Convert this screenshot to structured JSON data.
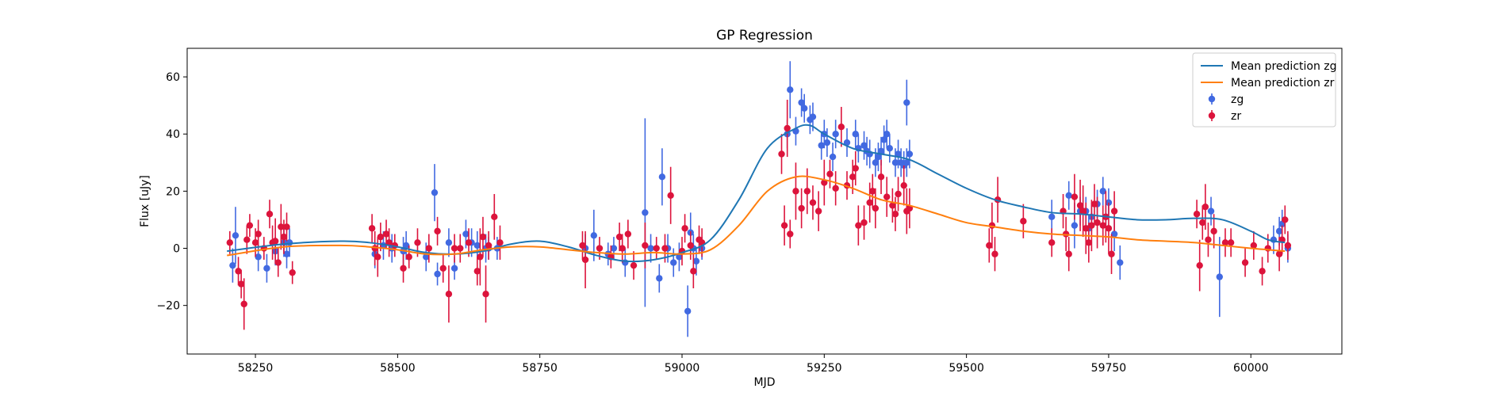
{
  "chart_data": {
    "type": "scatter",
    "title": "GP Regression",
    "xlabel": "MJD",
    "ylabel": "Flux [uJy]",
    "xlim": [
      58130,
      60160
    ],
    "ylim": [
      -37,
      70
    ],
    "xticks": [
      58250,
      58500,
      58750,
      59000,
      59250,
      59500,
      59750,
      60000
    ],
    "yticks": [
      -20,
      0,
      20,
      40,
      60
    ],
    "grid": false,
    "legend_position": "top-right",
    "colors": {
      "zg_line": "#1f77b4",
      "zr_line": "#ff7f0e",
      "zg_points": "#4169e1",
      "zr_points": "#dc143c"
    },
    "legend": [
      "Mean prediction zg",
      "Mean prediction zr",
      "zg",
      "zr"
    ],
    "series": [
      {
        "name": "Mean prediction zg",
        "kind": "line",
        "x": [
          58200,
          58300,
          58400,
          58450,
          58500,
          58550,
          58600,
          58650,
          58700,
          58750,
          58800,
          58850,
          58900,
          58950,
          59000,
          59050,
          59100,
          59150,
          59200,
          59225,
          59250,
          59300,
          59350,
          59400,
          59450,
          59500,
          59550,
          59600,
          59650,
          59700,
          59750,
          59800,
          59850,
          59900,
          59950,
          60000,
          60030,
          60060
        ],
        "y": [
          -1,
          1.5,
          2.5,
          2,
          0.5,
          -1.5,
          -2,
          -1,
          1.5,
          2.5,
          0.5,
          -2.5,
          -4.5,
          -4,
          -1.5,
          3,
          17,
          35,
          42,
          43,
          40,
          35,
          33,
          31,
          26,
          21,
          17,
          14.5,
          12.5,
          12,
          11,
          10,
          10,
          10.5,
          10,
          6,
          3,
          2
        ]
      },
      {
        "name": "Mean prediction zr",
        "kind": "line",
        "x": [
          58200,
          58300,
          58400,
          58450,
          58500,
          58550,
          58600,
          58650,
          58700,
          58750,
          58800,
          58850,
          58900,
          58950,
          59000,
          59050,
          59100,
          59150,
          59200,
          59250,
          59300,
          59350,
          59400,
          59450,
          59500,
          59550,
          59600,
          59650,
          59700,
          59750,
          59800,
          59850,
          59900,
          59950,
          60000,
          60030,
          60060
        ],
        "y": [
          -2.5,
          0.5,
          1,
          0.5,
          -0.5,
          -2,
          -2,
          -0.5,
          0.5,
          0.5,
          -0.5,
          -1.5,
          -2,
          -1.5,
          -2,
          -0.5,
          8,
          20,
          25,
          24,
          21,
          17,
          15,
          12,
          9,
          7.5,
          6,
          5,
          4.5,
          4,
          3,
          2.5,
          2,
          1,
          0,
          -0.5,
          -1
        ]
      },
      {
        "name": "zg",
        "kind": "errorbar",
        "x": [
          58210,
          58215,
          58255,
          58270,
          58285,
          58300,
          58305,
          58310,
          58460,
          58475,
          58490,
          58510,
          58515,
          58550,
          58565,
          58570,
          58590,
          58600,
          58620,
          58630,
          58640,
          58655,
          58660,
          58675,
          58830,
          58845,
          58870,
          58880,
          58900,
          58935,
          58945,
          58960,
          58965,
          58975,
          58985,
          58995,
          59010,
          59015,
          59020,
          59025,
          59035,
          59185,
          59190,
          59200,
          59210,
          59215,
          59225,
          59230,
          59245,
          59250,
          59255,
          59265,
          59270,
          59290,
          59305,
          59310,
          59320,
          59325,
          59330,
          59340,
          59345,
          59350,
          59355,
          59360,
          59365,
          59375,
          59380,
          59385,
          59390,
          59395,
          59395,
          59400,
          59650,
          59680,
          59690,
          59700,
          59710,
          59715,
          59720,
          59730,
          59740,
          59745,
          59750,
          59760,
          59770,
          59930,
          59945,
          60040,
          60050,
          60055,
          60065
        ],
        "y": [
          -6,
          4.5,
          -3,
          -7,
          -1,
          2,
          -2,
          2,
          -2,
          1,
          0,
          -1,
          1,
          -3,
          19.5,
          -9,
          2,
          -7,
          5,
          2,
          1,
          0,
          0,
          0,
          0,
          4.5,
          -2,
          0,
          -5,
          12.5,
          0,
          -10.5,
          25,
          0,
          -5,
          -3,
          -22,
          5.5,
          0,
          -4.5,
          0,
          40,
          55.5,
          41,
          51,
          49,
          45,
          46,
          36,
          40,
          37,
          32,
          40,
          37,
          40,
          35,
          36,
          34,
          33,
          30,
          32,
          34,
          38,
          40,
          35,
          30,
          33,
          30,
          29,
          30,
          51,
          33,
          11,
          18.5,
          8,
          13,
          13,
          7,
          11,
          15.5,
          20,
          11,
          16,
          5,
          -5,
          13,
          -10,
          3,
          6,
          8.5,
          0
        ],
        "err": [
          6,
          10,
          5,
          5,
          5,
          5,
          5,
          5,
          5,
          5,
          5,
          5,
          5,
          5,
          10,
          4,
          5,
          4,
          5,
          5,
          5,
          5,
          4,
          4,
          5,
          9,
          4,
          4,
          5,
          33,
          5,
          5,
          10,
          5,
          5,
          5,
          9,
          7,
          5,
          5,
          4,
          5,
          10,
          5,
          5,
          5,
          5,
          5,
          5,
          5,
          5,
          5,
          5,
          5,
          5,
          5,
          5,
          5,
          5,
          5,
          5,
          5,
          5,
          5,
          5,
          5,
          5,
          5,
          5,
          5,
          8,
          5,
          6,
          5,
          8,
          5,
          5,
          5,
          5,
          5,
          5,
          5,
          5,
          6,
          6,
          5,
          14,
          5,
          5,
          5,
          5
        ]
      },
      {
        "name": "zr",
        "kind": "errorbar",
        "x": [
          58205,
          58220,
          58225,
          58230,
          58235,
          58240,
          58250,
          58255,
          58265,
          58275,
          58280,
          58285,
          58290,
          58295,
          58300,
          58305,
          58315,
          58455,
          58460,
          58465,
          58470,
          58480,
          58485,
          58495,
          58510,
          58520,
          58535,
          58555,
          58570,
          58580,
          58590,
          58600,
          58610,
          58625,
          58640,
          58645,
          58650,
          58655,
          58660,
          58670,
          58680,
          58825,
          58830,
          58855,
          58875,
          58890,
          58895,
          58905,
          58915,
          58935,
          58955,
          58970,
          58980,
          59000,
          59005,
          59015,
          59020,
          59030,
          59035,
          59175,
          59180,
          59185,
          59190,
          59200,
          59210,
          59220,
          59230,
          59240,
          59250,
          59260,
          59270,
          59280,
          59290,
          59300,
          59305,
          59310,
          59320,
          59330,
          59335,
          59340,
          59350,
          59360,
          59370,
          59375,
          59380,
          59390,
          59395,
          59400,
          59540,
          59545,
          59550,
          59555,
          59600,
          59650,
          59670,
          59675,
          59680,
          59690,
          59700,
          59705,
          59710,
          59715,
          59720,
          59725,
          59730,
          59740,
          59745,
          59750,
          59755,
          59760,
          59905,
          59910,
          59915,
          59920,
          59925,
          59935,
          59955,
          59965,
          59990,
          60005,
          60020,
          60030,
          60050,
          60055,
          60060,
          60065
        ],
        "y": [
          2,
          -8,
          -12.5,
          -19.5,
          3,
          8,
          2,
          5,
          0,
          12,
          2,
          2.5,
          -5,
          7.5,
          4,
          7.5,
          -8.5,
          7,
          0,
          -3,
          4,
          5,
          2,
          1,
          -7,
          -3,
          2,
          0,
          6,
          -7,
          -16,
          0,
          0,
          2,
          -8,
          -3,
          4,
          -16,
          1,
          11,
          2,
          1,
          -4,
          0,
          -3,
          4,
          0,
          5,
          -6,
          1,
          0,
          0,
          18.5,
          -1,
          7,
          1,
          -8,
          3,
          2,
          33,
          8,
          42,
          5,
          20,
          14,
          20,
          16,
          13,
          23,
          26,
          21,
          42.5,
          22,
          25,
          28,
          8,
          9,
          16,
          20,
          14,
          25,
          18,
          15,
          12,
          19,
          22,
          13,
          14,
          1,
          8,
          -2,
          17,
          9.5,
          2,
          13,
          5,
          -2,
          18,
          15,
          13,
          7,
          2,
          8,
          15.5,
          9,
          8,
          11,
          7,
          -2,
          13,
          12,
          -6,
          9,
          14.5,
          3,
          6,
          2,
          2,
          -5,
          1,
          -8,
          0,
          -2,
          3,
          10,
          1
        ],
        "err": [
          4,
          5,
          5,
          9,
          5,
          4,
          5,
          5,
          4,
          5,
          6,
          8,
          5,
          8,
          6,
          5,
          4,
          5,
          6,
          7,
          5,
          5,
          5,
          4,
          5,
          4,
          5,
          5,
          5,
          5,
          10,
          5,
          5,
          5,
          5,
          10,
          7,
          10,
          5,
          8,
          6,
          5,
          10,
          4,
          4,
          5,
          5,
          5,
          5,
          8,
          4,
          5,
          10,
          5,
          5,
          5,
          6,
          5,
          5,
          7,
          7,
          10,
          5,
          10,
          7,
          8,
          6,
          7,
          8,
          5,
          6,
          7,
          5,
          6,
          6,
          7,
          6,
          7,
          6,
          7,
          6,
          7,
          6,
          6,
          6,
          7,
          8,
          7,
          6,
          8,
          6,
          8,
          6,
          5,
          6,
          6,
          6,
          8,
          9,
          9,
          9,
          7,
          9,
          7,
          9,
          7,
          9,
          9,
          7,
          7,
          5,
          9,
          6,
          8,
          6,
          6,
          5,
          5,
          5,
          5,
          5,
          5,
          6,
          5,
          5,
          5
        ]
      }
    ]
  }
}
